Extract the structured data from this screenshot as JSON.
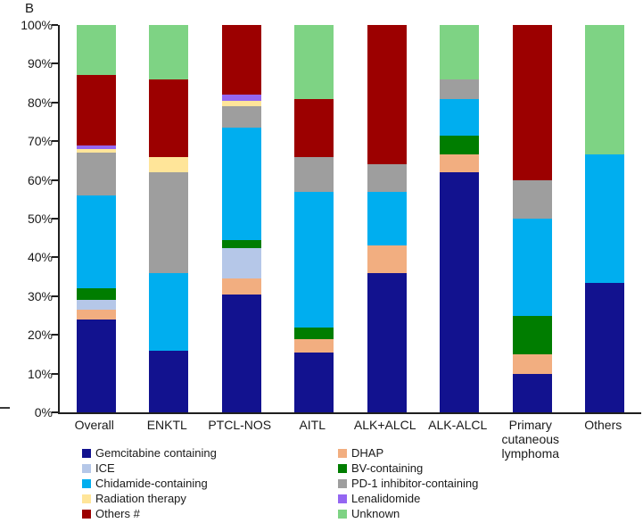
{
  "panel_label": "B",
  "colors": {
    "axis": "#1f1f1f",
    "text": "#1a1a1a",
    "background": "#ffffff"
  },
  "chart_data": {
    "type": "bar",
    "subtype": "stacked-100-percent",
    "title": "",
    "xlabel": "",
    "ylabel": "",
    "ylim": [
      0,
      100
    ],
    "grid": false,
    "legend_position": "bottom",
    "yticks": [
      "0%",
      "10%",
      "20%",
      "30%",
      "40%",
      "50%",
      "60%",
      "70%",
      "80%",
      "90%",
      "100%"
    ],
    "categories": [
      "Overall",
      "ENKTL",
      "PTCL-NOS",
      "AITL",
      "ALK+ALCL",
      "ALK-ALCL",
      "Primary cutaneous lymphoma",
      "Others"
    ],
    "series": [
      {
        "name": "Gemcitabine containing",
        "color": "#12128F",
        "values": [
          24,
          16,
          30.5,
          15.5,
          36,
          62,
          10,
          33.3
        ]
      },
      {
        "name": "DHAP",
        "color": "#F2AE80",
        "values": [
          2.5,
          0,
          4,
          3.5,
          7,
          4.5,
          5,
          0
        ]
      },
      {
        "name": "ICE",
        "color": "#B5C7E8",
        "values": [
          2.5,
          0,
          8,
          0,
          0,
          0,
          0,
          0
        ]
      },
      {
        "name": "BV-containing",
        "color": "#007D00",
        "values": [
          3,
          0,
          2,
          3,
          0,
          5,
          10,
          0
        ]
      },
      {
        "name": "Chidamide-containing",
        "color": "#00AEEF",
        "values": [
          24,
          20,
          29,
          35,
          14,
          9.5,
          25,
          33.4
        ]
      },
      {
        "name": "PD-1 inhibitor-containing",
        "color": "#9E9E9E",
        "values": [
          11,
          26,
          5.5,
          9,
          7,
          5,
          10,
          0
        ]
      },
      {
        "name": "Radiation therapy",
        "color": "#FFE599",
        "values": [
          1,
          4,
          1.5,
          0,
          0,
          0,
          0,
          0
        ]
      },
      {
        "name": "Lenalidomide",
        "color": "#9466F2",
        "values": [
          1,
          0,
          1.5,
          0,
          0,
          0,
          0,
          0
        ]
      },
      {
        "name": "Others #",
        "color": "#9C0000",
        "values": [
          18,
          20,
          18,
          15,
          36,
          0,
          40,
          0
        ]
      },
      {
        "name": "Unknown",
        "color": "#7ED384",
        "values": [
          13,
          14,
          0,
          19,
          0,
          14,
          0,
          33.3
        ]
      }
    ]
  },
  "legend": {
    "columns": [
      [
        "Gemcitabine containing",
        "ICE",
        "Chidamide-containing",
        "Radiation therapy",
        "Others #"
      ],
      [
        "DHAP",
        "BV-containing",
        "PD-1 inhibitor-containing",
        "Lenalidomide",
        "Unknown"
      ]
    ]
  }
}
